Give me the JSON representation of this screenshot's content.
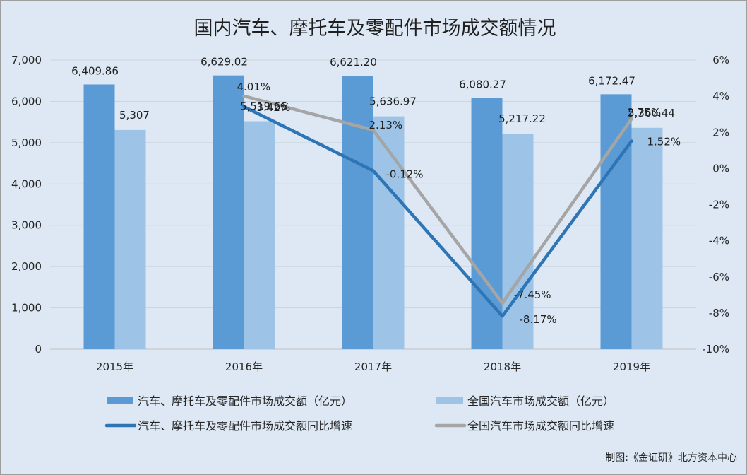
{
  "chart_data": {
    "type": "bar",
    "title": "国内汽车、摩托车及零配件市场成交额情况",
    "categories": [
      "2015年",
      "2016年",
      "2017年",
      "2018年",
      "2019年"
    ],
    "y_left": {
      "ylim": [
        0,
        7000
      ],
      "ticks": [
        0,
        1000,
        2000,
        3000,
        4000,
        5000,
        6000,
        7000
      ],
      "tick_labels": [
        "0",
        "1,000",
        "2,000",
        "3,000",
        "4,000",
        "5,000",
        "6,000",
        "7,000"
      ]
    },
    "y_right": {
      "ylim": [
        -10,
        6
      ],
      "ticks": [
        -10,
        -8,
        -6,
        -4,
        -2,
        0,
        2,
        4,
        6
      ],
      "tick_labels": [
        "-10%",
        "-8%",
        "-6%",
        "-4%",
        "-2%",
        "0%",
        "2%",
        "4%",
        "6%"
      ]
    },
    "series": [
      {
        "name": "汽车、摩托车及零配件市场成交额（亿元）",
        "kind": "bar",
        "axis": "left",
        "color": "#5b9bd5",
        "values": [
          6409.86,
          6629.02,
          6621.2,
          6080.27,
          6172.47
        ],
        "labels": [
          "6,409.86",
          "6,629.02",
          "6,621.20",
          "6,080.27",
          "6,172.47"
        ]
      },
      {
        "name": "全国汽车市场成交额（亿元）",
        "kind": "bar",
        "axis": "left",
        "color": "#9dc3e6",
        "values": [
          5307,
          5519.66,
          5636.97,
          5217.22,
          5360.44
        ],
        "labels": [
          "5,307",
          "5,519.66",
          "5,636.97",
          "5,217.22",
          "5,360.44"
        ]
      },
      {
        "name": "汽车、摩托车及零配件市场成交额同比增速",
        "kind": "line",
        "axis": "right",
        "color": "#2e75b6",
        "x": [
          "2016年",
          "2017年",
          "2018年",
          "2019年"
        ],
        "values": [
          3.42,
          -0.12,
          -8.17,
          1.52
        ],
        "labels": [
          "3.42%",
          "-0.12%",
          "-8.17%",
          "1.52%"
        ]
      },
      {
        "name": "全国汽车市场成交额同比增速",
        "kind": "line",
        "axis": "right",
        "color": "#a5a5a5",
        "x": [
          "2016年",
          "2017年",
          "2018年",
          "2019年"
        ],
        "values": [
          4.01,
          2.13,
          -7.45,
          2.75
        ],
        "labels": [
          "4.01%",
          "2.13%",
          "-7.45%",
          "2.75%"
        ]
      }
    ],
    "legend_position": "bottom",
    "grid": true
  },
  "credit": "制图:《金证研》北方资本中心"
}
